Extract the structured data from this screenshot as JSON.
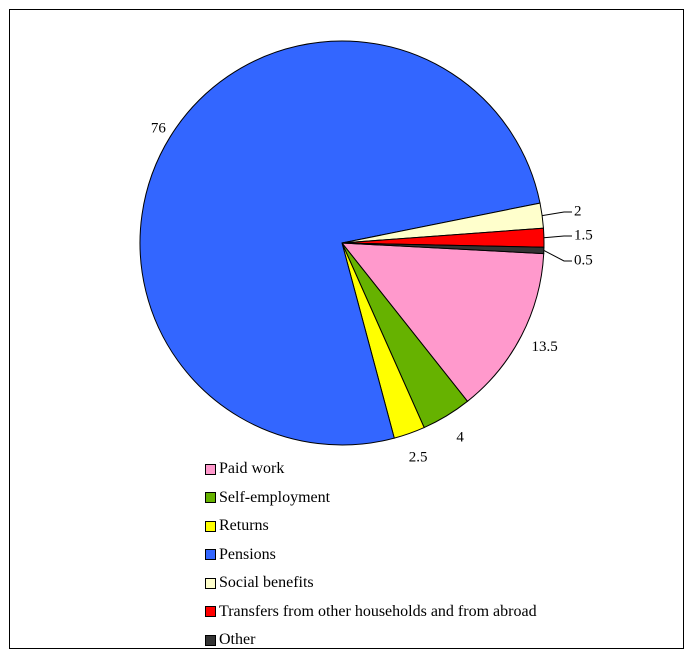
{
  "chart_data": {
    "type": "pie",
    "title": "",
    "categories": [
      "Paid work",
      "Self-employment",
      "Returns",
      "Pensions",
      "Social benefits",
      "Transfers from other households and from abroad",
      "Other"
    ],
    "values": [
      13.5,
      4,
      2.5,
      76,
      2,
      1.5,
      0.5
    ],
    "value_labels": [
      "13.5",
      "4",
      "2.5",
      "76",
      "2",
      "1.5",
      "0.5"
    ],
    "colors": [
      "#FF99CC",
      "#66B200",
      "#FFFF00",
      "#3366FF",
      "#FFFFCC",
      "#FF0000",
      "#333333"
    ],
    "start_angle_note": "clockwise",
    "legend_position": "bottom-center"
  }
}
